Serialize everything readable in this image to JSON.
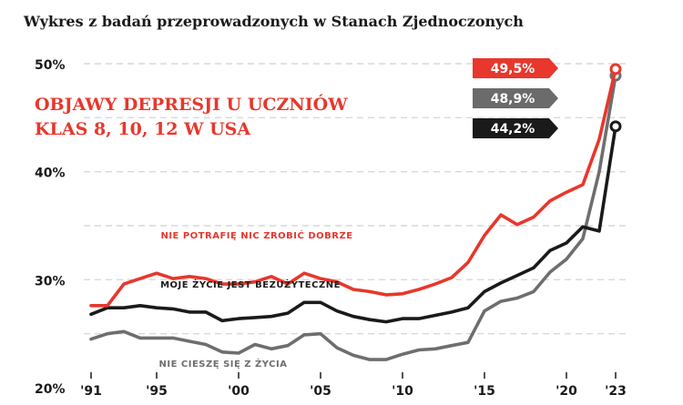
{
  "header": {
    "title": "Wykres z badań przeprowadzonych w Stanach Zjednoczonych"
  },
  "chart_data": {
    "type": "line",
    "title": "OBJAWY DEPRESJI U UCZNIÓW\nKLAS 8, 10, 12 W USA",
    "xlabel": "",
    "ylabel": "",
    "xlim": [
      1991,
      2023
    ],
    "ylim": [
      20,
      50
    ],
    "y_ticks": [
      "20%",
      "30%",
      "40%",
      "50%"
    ],
    "x_ticks": [
      {
        "value": 1991,
        "label": "'91"
      },
      {
        "value": 1995,
        "label": "'95"
      },
      {
        "value": 2000,
        "label": "'00"
      },
      {
        "value": 2005,
        "label": "'05"
      },
      {
        "value": 2010,
        "label": "'10"
      },
      {
        "value": 2015,
        "label": "'15"
      },
      {
        "value": 2020,
        "label": "'20"
      },
      {
        "value": 2023,
        "label": "'23"
      }
    ],
    "grid": "horizontal dashed",
    "series": [
      {
        "name": "NIE POTRAFIĘ NIC ZROBIĆ DOBRZE",
        "color": "#e8372c",
        "end_label": "49,5%",
        "x": [
          1991,
          1992,
          1993,
          1994,
          1995,
          1996,
          1997,
          1998,
          1999,
          2000,
          2001,
          2002,
          2003,
          2004,
          2005,
          2006,
          2007,
          2008,
          2009,
          2010,
          2011,
          2012,
          2013,
          2014,
          2015,
          2016,
          2017,
          2018,
          2019,
          2020,
          2021,
          2022,
          2023
        ],
        "values": [
          27.6,
          27.6,
          29.6,
          30.1,
          30.6,
          30.1,
          30.3,
          30.1,
          29.6,
          29.6,
          29.8,
          30.3,
          29.6,
          30.6,
          30.1,
          29.8,
          29.1,
          28.9,
          28.6,
          28.7,
          29.1,
          29.6,
          30.2,
          31.6,
          34.1,
          36.0,
          35.1,
          35.8,
          37.3,
          38.1,
          38.8,
          43.0,
          49.5
        ]
      },
      {
        "name": "MOJE ŻYCIE JEST BEZUŻYTECZNE",
        "color": "#1a1a1a",
        "end_label": "44,2%",
        "x": [
          1991,
          1992,
          1993,
          1994,
          1995,
          1996,
          1997,
          1998,
          1999,
          2000,
          2001,
          2002,
          2003,
          2004,
          2005,
          2006,
          2007,
          2008,
          2009,
          2010,
          2011,
          2012,
          2013,
          2014,
          2015,
          2016,
          2017,
          2018,
          2019,
          2020,
          2021,
          2022,
          2023
        ],
        "values": [
          26.8,
          27.4,
          27.4,
          27.6,
          27.4,
          27.3,
          27.0,
          27.0,
          26.2,
          26.4,
          26.5,
          26.6,
          26.9,
          27.9,
          27.9,
          27.1,
          26.6,
          26.3,
          26.1,
          26.4,
          26.4,
          26.7,
          27.0,
          27.4,
          28.9,
          29.7,
          30.4,
          31.1,
          32.7,
          33.4,
          34.9,
          34.5,
          44.2
        ]
      },
      {
        "name": "NIE CIESZĘ SIĘ Z ŻYCIA",
        "color": "#6e6e6e",
        "end_label": "48,9%",
        "x": [
          1991,
          1992,
          1993,
          1994,
          1995,
          1996,
          1997,
          1998,
          1999,
          2000,
          2001,
          2002,
          2003,
          2004,
          2005,
          2006,
          2007,
          2008,
          2009,
          2010,
          2011,
          2012,
          2013,
          2014,
          2015,
          2016,
          2017,
          2018,
          2019,
          2020,
          2021,
          2022,
          2023
        ],
        "values": [
          24.5,
          25.0,
          25.2,
          24.6,
          24.6,
          24.6,
          24.3,
          24.0,
          23.3,
          23.2,
          24.0,
          23.6,
          23.9,
          24.9,
          25.0,
          23.7,
          23.0,
          22.6,
          22.6,
          23.1,
          23.5,
          23.6,
          23.9,
          24.2,
          27.1,
          28.0,
          28.3,
          28.9,
          30.7,
          31.9,
          33.8,
          40.0,
          48.9
        ]
      }
    ]
  }
}
